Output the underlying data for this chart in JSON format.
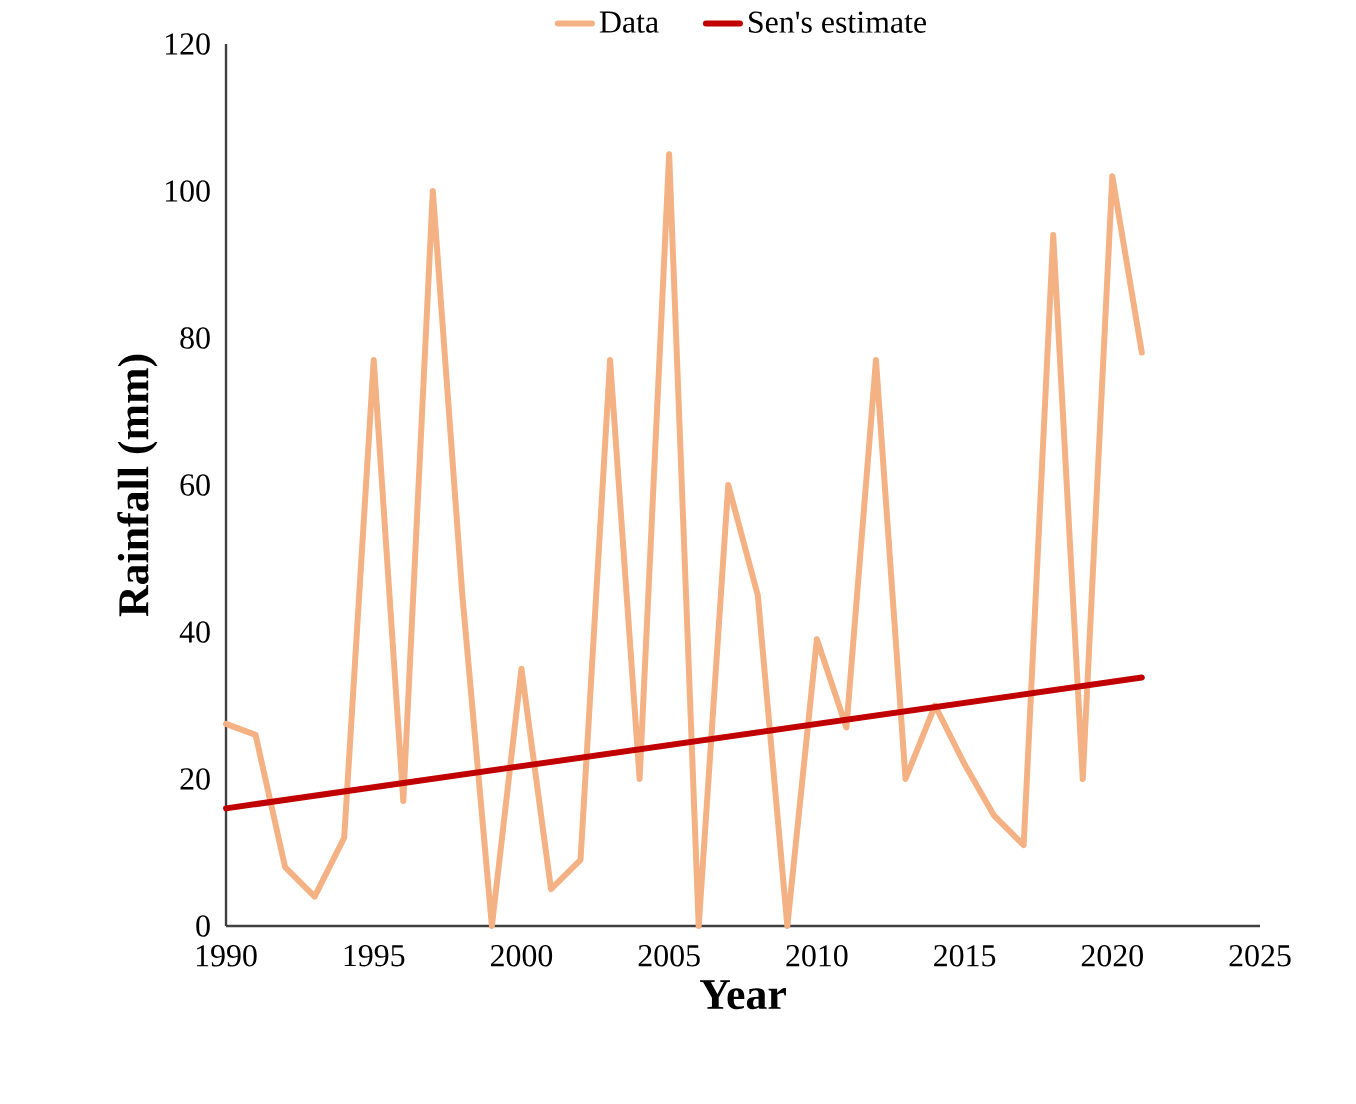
{
  "chart_data": {
    "type": "line",
    "xlabel": "Year",
    "ylabel": "Rainfall (mm)",
    "x": [
      1990,
      1991,
      1992,
      1993,
      1994,
      1995,
      1996,
      1997,
      1998,
      1999,
      2000,
      2001,
      2002,
      2003,
      2004,
      2005,
      2006,
      2007,
      2008,
      2009,
      2010,
      2011,
      2012,
      2013,
      2014,
      2015,
      2016,
      2017,
      2018,
      2019,
      2020,
      2021
    ],
    "series": [
      {
        "name": "Data",
        "color": "#f4b183",
        "values": [
          27.5,
          26,
          8,
          4,
          12,
          77,
          17,
          100,
          45,
          0,
          35,
          5,
          9,
          77,
          20,
          105,
          0,
          60,
          45,
          0,
          39,
          27,
          77,
          20,
          30,
          22,
          15,
          11,
          94,
          20,
          102,
          78
        ]
      },
      {
        "name": "Sen's estimate",
        "color": "#c00000",
        "x": [
          1990,
          2021
        ],
        "values": [
          16,
          33.8
        ]
      }
    ],
    "xlim": [
      1990,
      2025
    ],
    "xticks": [
      1990,
      1995,
      2000,
      2005,
      2010,
      2015,
      2020,
      2025
    ],
    "ylim": [
      0,
      120
    ],
    "yticks": [
      0,
      20,
      40,
      60,
      80,
      100,
      120
    ],
    "legend": "top"
  }
}
